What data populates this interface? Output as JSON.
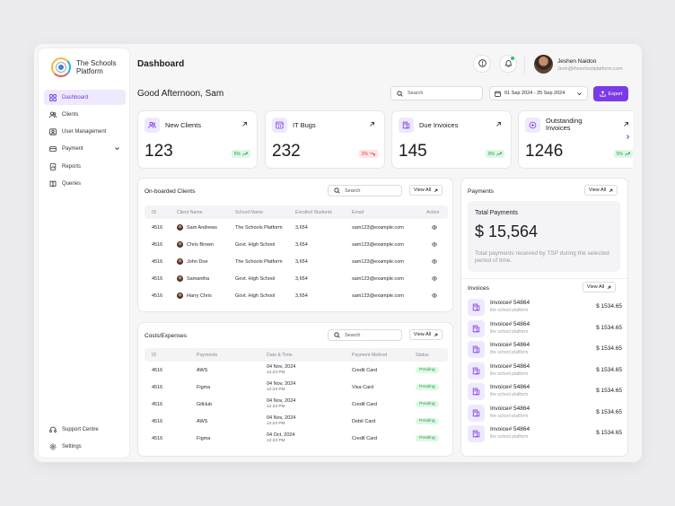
{
  "brand": {
    "name": "The Schools Platform"
  },
  "sidebar": {
    "items": [
      {
        "label": "Dashboard",
        "icon": "grid-icon",
        "active": true
      },
      {
        "label": "Clients",
        "icon": "users-icon"
      },
      {
        "label": "User Management",
        "icon": "user-settings-icon"
      },
      {
        "label": "Payment",
        "icon": "wallet-icon",
        "has_children": true
      },
      {
        "label": "Reports",
        "icon": "report-icon"
      },
      {
        "label": "Queries",
        "icon": "book-icon"
      }
    ],
    "bottom": [
      {
        "label": "Support Centre",
        "icon": "headset-icon"
      },
      {
        "label": "Settings",
        "icon": "gear-icon"
      }
    ]
  },
  "header": {
    "title": "Dashboard",
    "user": {
      "name": "Jeshen Naidoo",
      "email": "Jesh@theschoolplatform.com"
    }
  },
  "toolbar": {
    "greeting": "Good Afternoon, Sam",
    "search_placeholder": "Search",
    "date_range": "01 Sep 2024 - 25 Sep 2024",
    "export_label": "Export",
    "accent": "#7a3be6"
  },
  "stats": [
    {
      "label": "New Clients",
      "value": "123",
      "change": "5%",
      "trend": "up",
      "icon": "users-icon"
    },
    {
      "label": "IT Bugs",
      "value": "232",
      "change": "2%",
      "trend": "down",
      "icon": "bug-window-icon"
    },
    {
      "label": "Due Invoices",
      "value": "145",
      "change": "9%",
      "trend": "up",
      "icon": "invoice-icon"
    },
    {
      "label": "Outstanding Invoices",
      "value": "1246",
      "change": "5%",
      "trend": "up",
      "icon": "document-icon"
    }
  ],
  "clients": {
    "title": "On-boarded Clients",
    "search_placeholder": "Search",
    "view_all": "View All",
    "columns": [
      "ID",
      "Client Name",
      "School Name",
      "Enrolled Students",
      "Email",
      "Action"
    ],
    "rows": [
      [
        "4516",
        "Sam Andrews",
        "The Schools Platform",
        "3,654",
        "sam123@example.com"
      ],
      [
        "4516",
        "Chris Brown",
        "Govt. High School",
        "3,654",
        "sam123@example.com"
      ],
      [
        "4516",
        "John Doe",
        "The Schools Platform",
        "3,654",
        "sam123@example.com"
      ],
      [
        "4516",
        "Samantha",
        "Govt. High School",
        "3,654",
        "sam123@example.com"
      ],
      [
        "4516",
        "Harry Chris",
        "Govt. High School",
        "3,654",
        "sam123@example.com"
      ]
    ]
  },
  "costs": {
    "title": "Costs/Expenses",
    "search_placeholder": "Search",
    "view_all": "View All",
    "columns": [
      "ID",
      "Payments",
      "Date & Time",
      "Payment Method",
      "Status"
    ],
    "rows": [
      [
        "4516",
        "AWS",
        "04 Nov, 2024",
        "12:23 PM",
        "Credit Card",
        "Pending"
      ],
      [
        "4516",
        "Figma",
        "04 Nov, 2024",
        "12:23 PM",
        "Visa Card",
        "Pending"
      ],
      [
        "4516",
        "GitHub",
        "04 Nov, 2024",
        "12:23 PM",
        "Credit Card",
        "Pending"
      ],
      [
        "4516",
        "AWS",
        "04 Nov, 2024",
        "12:23 PM",
        "Debit Card",
        "Pending"
      ],
      [
        "4516",
        "Figma",
        "04 Oct, 2024",
        "12:23 PM",
        "Credit Card",
        "Pending"
      ]
    ]
  },
  "payments": {
    "title": "Payments",
    "view_all": "View All",
    "total_label": "Total Payments",
    "total_value": "$ 15,564",
    "description": "Total payments received by TSP during the selected period of time."
  },
  "invoices": {
    "title": "Invoices",
    "view_all": "View All",
    "items": [
      {
        "name": "Invoice# 54864",
        "sub": "the school platform",
        "amount": "$ 1534.65"
      },
      {
        "name": "Invoice# 54864",
        "sub": "the school platform",
        "amount": "$ 1534.65"
      },
      {
        "name": "Invoice# 54864",
        "sub": "the school platform",
        "amount": "$ 1534.65"
      },
      {
        "name": "Invoice# 54864",
        "sub": "the school platform",
        "amount": "$ 1534.65"
      },
      {
        "name": "Invoice# 54864",
        "sub": "the school platform",
        "amount": "$ 1534.65"
      },
      {
        "name": "Invoice# 54864",
        "sub": "the school platform",
        "amount": "$ 1534.65"
      },
      {
        "name": "Invoice# 54864",
        "sub": "the school platform",
        "amount": "$ 1534.65"
      }
    ]
  }
}
